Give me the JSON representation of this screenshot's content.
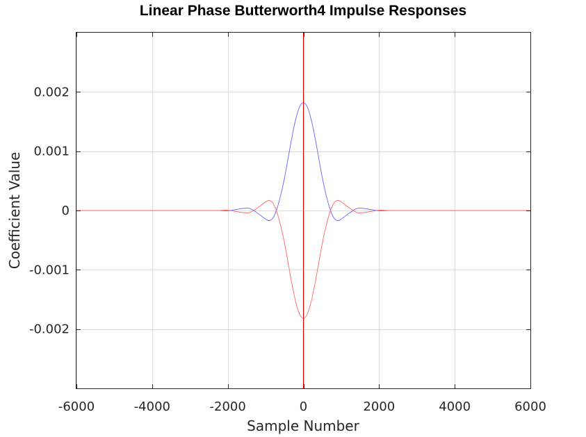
{
  "chart_data": {
    "type": "line",
    "title": "Linear Phase Butterworth4 Impulse Responses",
    "xlabel": "Sample Number",
    "ylabel": "Coefficient Value",
    "xlim": [
      -6000,
      6000
    ],
    "ylim": [
      -0.003,
      0.003
    ],
    "xticks": [
      -6000,
      -4000,
      -2000,
      0,
      2000,
      4000,
      6000
    ],
    "xtick_labels": [
      "-6000",
      "-4000",
      "-2000",
      "0",
      "2000",
      "4000",
      "6000"
    ],
    "yticks": [
      -0.002,
      -0.001,
      0,
      0.001,
      0.002
    ],
    "ytick_labels": [
      "-0.002",
      "-0.001",
      "0",
      "0.001",
      "0.002"
    ],
    "grid": true,
    "series": [
      {
        "color": "#7070ff",
        "x": [
          -6000,
          -2400,
          -2200,
          -2000,
          -1800,
          -1600,
          -1500,
          -1400,
          -1200,
          -1000,
          -900,
          -800,
          -700,
          -600,
          -500,
          -400,
          -300,
          -200,
          -100,
          0,
          100,
          200,
          300,
          400,
          500,
          600,
          700,
          800,
          900,
          1000,
          1200,
          1400,
          1500,
          1600,
          1800,
          2000,
          2200,
          2400,
          6000
        ],
        "y": [
          0,
          0,
          -2e-06,
          -5e-06,
          1.5e-05,
          3.5e-05,
          4e-05,
          3e-05,
          -5e-05,
          -0.000145,
          -0.00017,
          -0.00012,
          3e-05,
          0.00026,
          0.00055,
          0.0009,
          0.00125,
          0.00155,
          0.00175,
          0.00182,
          0.00175,
          0.00155,
          0.00125,
          0.0009,
          0.00055,
          0.00026,
          3e-05,
          -0.00012,
          -0.00017,
          -0.000145,
          -5e-05,
          3e-05,
          4e-05,
          3.5e-05,
          1.5e-05,
          -5e-06,
          -2e-06,
          0,
          0
        ]
      },
      {
        "color": "#ff7070",
        "x": [
          -6000,
          -2400,
          -2200,
          -2000,
          -1800,
          -1600,
          -1500,
          -1400,
          -1200,
          -1000,
          -900,
          -800,
          -700,
          -600,
          -500,
          -400,
          -300,
          -200,
          -100,
          0,
          100,
          200,
          300,
          400,
          500,
          600,
          700,
          800,
          900,
          1000,
          1200,
          1400,
          1500,
          1600,
          1800,
          2000,
          2200,
          2400,
          6000
        ],
        "y": [
          0,
          0,
          2e-06,
          5e-06,
          -1.5e-05,
          -3.5e-05,
          -4e-05,
          -3e-05,
          5e-05,
          0.000145,
          0.00017,
          0.00012,
          -3e-05,
          -0.00026,
          -0.00055,
          -0.0009,
          -0.00125,
          -0.00155,
          -0.00175,
          -0.00182,
          -0.00175,
          -0.00155,
          -0.00125,
          -0.0009,
          -0.00055,
          -0.00026,
          -3e-05,
          0.00012,
          0.00017,
          0.000145,
          5e-05,
          -3e-05,
          -4e-05,
          -3.5e-05,
          -1.5e-05,
          5e-06,
          2e-06,
          0,
          0
        ]
      },
      {
        "color": "#e00000",
        "x": [
          0,
          0
        ],
        "y": [
          -0.003,
          0.003
        ]
      }
    ]
  }
}
